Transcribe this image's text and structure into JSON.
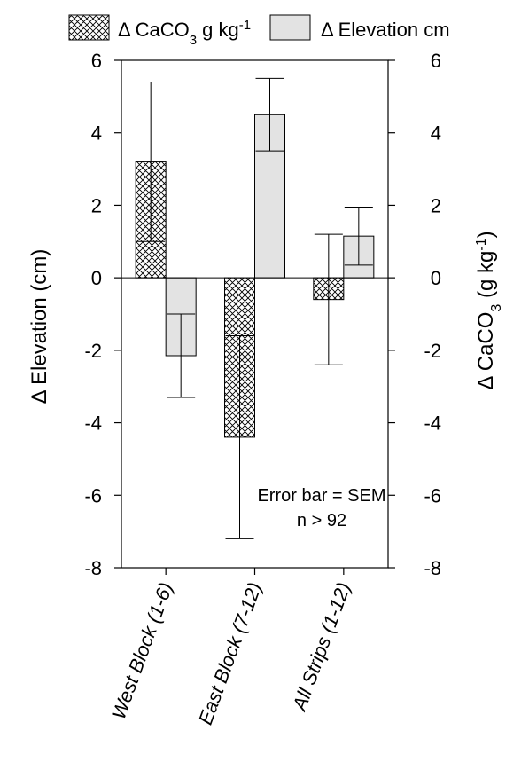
{
  "chart_data": {
    "type": "bar",
    "categories": [
      "West Block (1-6)",
      "East Block (7-12)",
      "All Strips (1-12)"
    ],
    "series": [
      {
        "name": "Δ CaCO3 g kg-1",
        "legend_parts": {
          "pre": "Δ CaCO",
          "sub": "3",
          "mid": " g kg",
          "sup": "-1",
          "post": ""
        },
        "axis": "right",
        "pattern": "crosshatch",
        "values": [
          3.2,
          -4.4,
          -0.6
        ],
        "errors": [
          2.2,
          2.8,
          1.8
        ]
      },
      {
        "name": "Δ Elevation cm",
        "legend_parts": {
          "pre": "Δ Elevation cm",
          "sub": "",
          "mid": "",
          "sup": "",
          "post": ""
        },
        "axis": "left",
        "color": "#e3e3e3",
        "values": [
          -2.15,
          4.5,
          1.15
        ],
        "errors": [
          1.15,
          1.0,
          0.8
        ]
      }
    ],
    "ylabel_left": "Δ Elevation (cm)",
    "ylabel_right_parts": {
      "pre": "Δ CaCO",
      "sub": "3",
      "mid": "  (g kg",
      "sup": "-1",
      "post": ")"
    },
    "ylim": [
      -8,
      6
    ],
    "yticks": [
      -8,
      -6,
      -4,
      -2,
      0,
      2,
      4,
      6
    ],
    "annotation": [
      "Error bar = SEM",
      "n  >  92"
    ],
    "legend_position": "top",
    "grid": false
  }
}
